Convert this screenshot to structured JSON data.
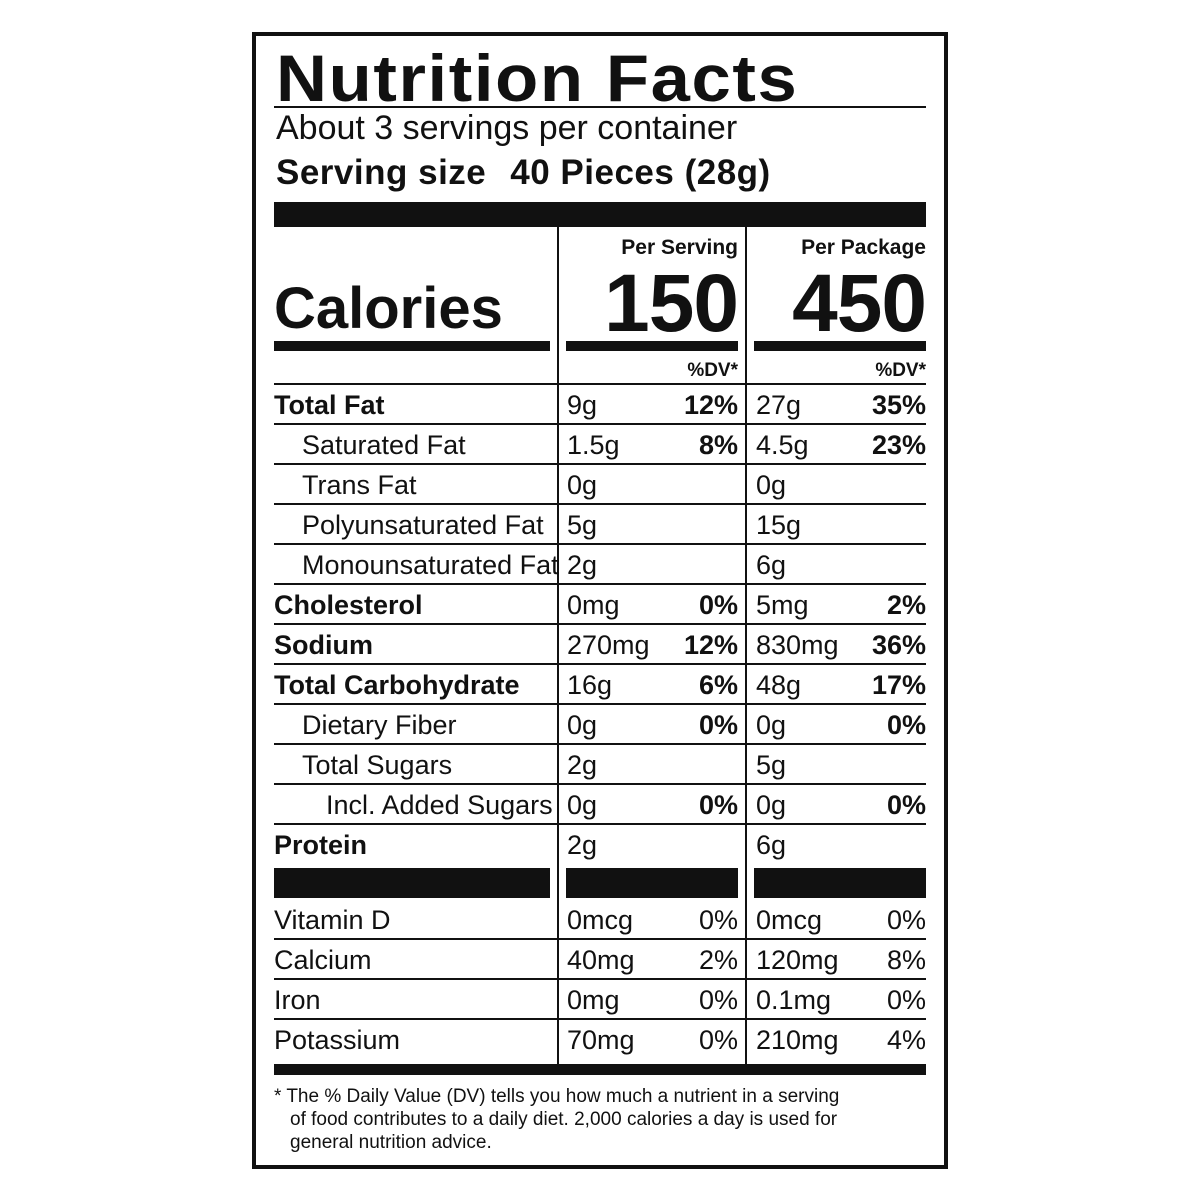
{
  "label": {
    "title": "Nutrition Facts",
    "servings_per_container": "About 3 servings per container",
    "serving_size_label": "Serving size",
    "serving_size_value": "40 Pieces (28g)",
    "per_serving_header": "Per Serving",
    "per_package_header": "Per Package",
    "calories_label": "Calories",
    "calories_per_serving": "150",
    "calories_per_package": "450",
    "dv_header": "%DV*",
    "nutrients": [
      {
        "name": "Total Fat",
        "style": "bold",
        "serving_amount": "9g",
        "serving_dv": "12%",
        "package_amount": "27g",
        "package_dv": "35%"
      },
      {
        "name": "Saturated Fat",
        "style": "indent",
        "serving_amount": "1.5g",
        "serving_dv": "8%",
        "package_amount": "4.5g",
        "package_dv": "23%"
      },
      {
        "name": "Trans Fat",
        "style": "indent",
        "serving_amount": "0g",
        "serving_dv": "",
        "package_amount": "0g",
        "package_dv": ""
      },
      {
        "name": "Polyunsaturated Fat",
        "style": "indent",
        "serving_amount": "5g",
        "serving_dv": "",
        "package_amount": "15g",
        "package_dv": ""
      },
      {
        "name": "Monounsaturated Fat",
        "style": "indent",
        "serving_amount": "2g",
        "serving_dv": "",
        "package_amount": "6g",
        "package_dv": ""
      },
      {
        "name": "Cholesterol",
        "style": "bold",
        "serving_amount": "0mg",
        "serving_dv": "0%",
        "package_amount": "5mg",
        "package_dv": "2%"
      },
      {
        "name": "Sodium",
        "style": "bold",
        "serving_amount": "270mg",
        "serving_dv": "12%",
        "package_amount": "830mg",
        "package_dv": "36%"
      },
      {
        "name": "Total Carbohydrate",
        "style": "bold",
        "serving_amount": "16g",
        "serving_dv": "6%",
        "package_amount": "48g",
        "package_dv": "17%"
      },
      {
        "name": "Dietary Fiber",
        "style": "indent",
        "serving_amount": "0g",
        "serving_dv": "0%",
        "package_amount": "0g",
        "package_dv": "0%"
      },
      {
        "name": "Total Sugars",
        "style": "indent",
        "serving_amount": "2g",
        "serving_dv": "",
        "package_amount": "5g",
        "package_dv": ""
      },
      {
        "name": "Incl. Added Sugars",
        "style": "indent2",
        "serving_amount": "0g",
        "serving_dv": "0%",
        "package_amount": "0g",
        "package_dv": "0%"
      },
      {
        "name": "Protein",
        "style": "bold",
        "serving_amount": "2g",
        "serving_dv": "",
        "package_amount": "6g",
        "package_dv": ""
      }
    ],
    "vitamins": [
      {
        "name": "Vitamin D",
        "serving_amount": "0mcg",
        "serving_dv": "0%",
        "package_amount": "0mcg",
        "package_dv": "0%"
      },
      {
        "name": "Calcium",
        "serving_amount": "40mg",
        "serving_dv": "2%",
        "package_amount": "120mg",
        "package_dv": "8%"
      },
      {
        "name": "Iron",
        "serving_amount": "0mg",
        "serving_dv": "0%",
        "package_amount": "0.1mg",
        "package_dv": "0%"
      },
      {
        "name": "Potassium",
        "serving_amount": "70mg",
        "serving_dv": "0%",
        "package_amount": "210mg",
        "package_dv": "4%"
      }
    ],
    "footnote_line1": "* The % Daily Value (DV) tells you how much a nutrient in a serving",
    "footnote_line2": "of food contributes to a daily diet. 2,000 calories a day is used for",
    "footnote_line3": "general nutrition advice."
  },
  "colors": {
    "ink": "#111111",
    "background": "#ffffff"
  }
}
